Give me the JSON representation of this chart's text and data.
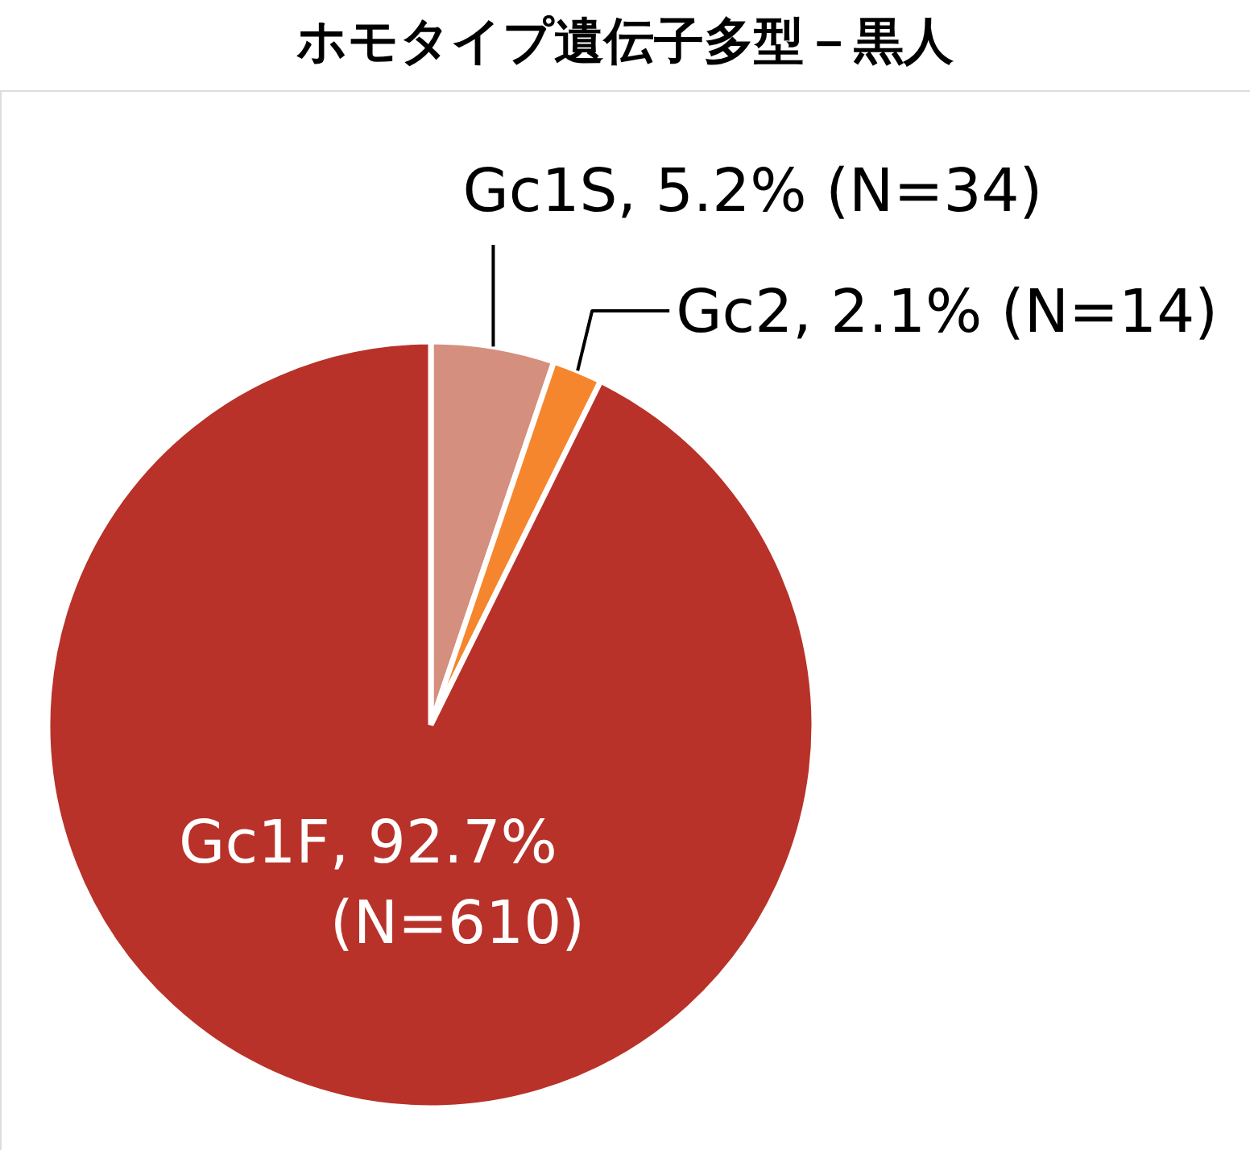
{
  "chart_data": {
    "type": "pie",
    "title": "ホモタイプ遺伝子多型－黒人",
    "categories": [
      "Gc1S",
      "Gc2",
      "Gc1F"
    ],
    "values": [
      5.2,
      2.1,
      92.7
    ],
    "colors": [
      "#d48f7e",
      "#f5862e",
      "#b83229"
    ],
    "value_labels": [
      ", 5.2% (N=34)",
      ", 2.1% (N=14)",
      ", 92.7%\n(N=610)"
    ]
  }
}
